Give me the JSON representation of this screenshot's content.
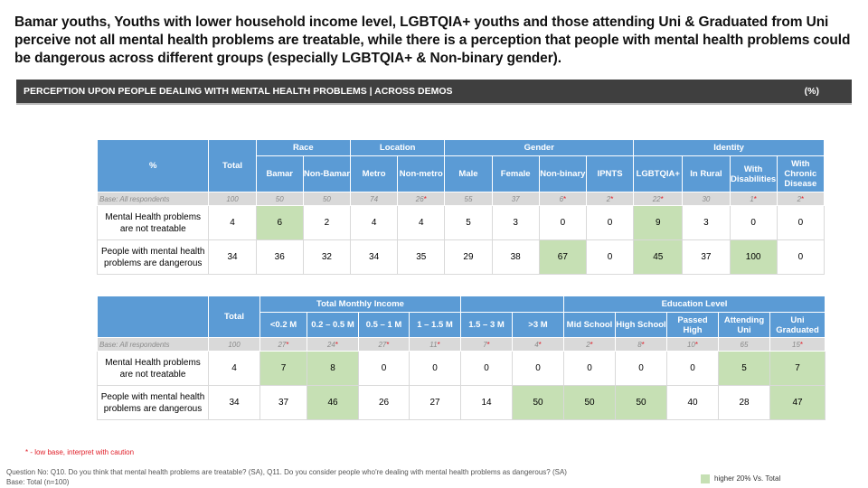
{
  "headline": "Bamar youths, Youths with lower household income level, LGBTQIA+ youths and those attending Uni & Graduated from Uni perceive not all mental health problems are treatable, while there is a perception that people with mental health problems could be dangerous across different groups (especially LGBTQIA+ & Non-binary gender).",
  "section_bar": {
    "title": "PERCEPTION UPON PEOPLE DEALING WITH MENTAL HEALTH PROBLEMS | ACROSS DEMOS",
    "unit": "(%)"
  },
  "table1": {
    "corner": "%",
    "total_label": "Total",
    "groups": [
      "Race",
      "Location",
      "Gender",
      "Identity"
    ],
    "columns": [
      "Bamar",
      "Non-Bamar",
      "Metro",
      "Non-metro",
      "Male",
      "Female",
      "Non-binary",
      "IPNTS",
      "LGBTQIA+",
      "In Rural",
      "With Disabilities",
      "With Chronic Disease"
    ],
    "base_label": "Base: All respondents",
    "base_values": [
      "100",
      "50",
      "50",
      "74",
      "26",
      "55",
      "37",
      "6",
      "2",
      "22",
      "30",
      "1",
      "2"
    ],
    "base_low": [
      false,
      false,
      false,
      false,
      true,
      false,
      false,
      true,
      true,
      true,
      false,
      true,
      true
    ],
    "rows": [
      {
        "label": "Mental Health problems are not treatable",
        "values": [
          "4",
          "6",
          "2",
          "4",
          "4",
          "5",
          "3",
          "0",
          "0",
          "9",
          "3",
          "0",
          "0"
        ],
        "highlight": [
          false,
          true,
          false,
          false,
          false,
          false,
          false,
          false,
          false,
          true,
          false,
          false,
          false
        ]
      },
      {
        "label": "People with mental health problems are dangerous",
        "values": [
          "34",
          "36",
          "32",
          "34",
          "35",
          "29",
          "38",
          "67",
          "0",
          "45",
          "37",
          "100",
          "0"
        ],
        "highlight": [
          false,
          false,
          false,
          false,
          false,
          false,
          false,
          true,
          false,
          true,
          false,
          true,
          false
        ]
      }
    ]
  },
  "table2": {
    "total_label": "Total",
    "groups": [
      "Total Monthly Income",
      "Education Level"
    ],
    "columns": [
      "<0.2 M",
      "0.2 – 0.5 M",
      "0.5 – 1 M",
      "1 – 1.5 M",
      "1.5 – 3 M",
      ">3 M",
      "Mid School",
      "High School",
      "Passed High",
      "Attending Uni",
      "Uni Graduated"
    ],
    "base_label": "Base: All respondents",
    "base_values": [
      "100",
      "27",
      "24",
      "27",
      "11",
      "7",
      "4",
      "2",
      "8",
      "10",
      "65",
      "15"
    ],
    "base_low": [
      false,
      true,
      true,
      true,
      true,
      true,
      true,
      true,
      true,
      true,
      false,
      true
    ],
    "rows": [
      {
        "label": "Mental Health problems are not treatable",
        "values": [
          "4",
          "7",
          "8",
          "0",
          "0",
          "0",
          "0",
          "0",
          "0",
          "0",
          "5",
          "7"
        ],
        "highlight": [
          false,
          true,
          true,
          false,
          false,
          false,
          false,
          false,
          false,
          false,
          true,
          true
        ]
      },
      {
        "label": "People with mental health problems are dangerous",
        "values": [
          "34",
          "37",
          "46",
          "26",
          "27",
          "14",
          "50",
          "50",
          "50",
          "40",
          "28",
          "47"
        ],
        "highlight": [
          false,
          false,
          true,
          false,
          false,
          false,
          true,
          true,
          true,
          false,
          false,
          true
        ]
      }
    ]
  },
  "low_base_note": "* - low base, interpret with caution",
  "question_note": "Question No: Q10. Do you think that mental health problems are treatable? (SA), Q11. Do you consider people who're dealing with mental health problems as dangerous? (SA)",
  "base_note": "Base: Total (n=100)",
  "legend": {
    "label": "higher 20% Vs. Total",
    "color": "#c6e0b4"
  }
}
